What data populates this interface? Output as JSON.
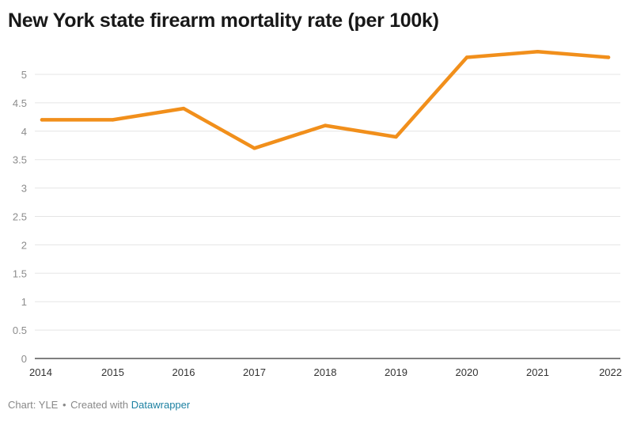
{
  "colors": {
    "line": "#f18f1b",
    "grid": "#e5e5e5",
    "axis": "#333333",
    "tick_label": "#8c8c8c",
    "x_tick_label": "#333333",
    "link": "#1d81a2"
  },
  "chart_data": {
    "type": "line",
    "title": "New York state firearm mortality rate (per 100k)",
    "xlabel": "",
    "ylabel": "",
    "categories": [
      "2014",
      "2015",
      "2016",
      "2017",
      "2018",
      "2019",
      "2020",
      "2021",
      "2022"
    ],
    "series": [
      {
        "name": "Firearm mortality rate",
        "values": [
          4.2,
          4.2,
          4.4,
          3.7,
          4.1,
          3.9,
          5.3,
          5.4,
          5.3
        ]
      }
    ],
    "ylim": [
      0,
      5.5
    ],
    "yticks": [
      0,
      0.5,
      1,
      1.5,
      2,
      2.5,
      3,
      3.5,
      4,
      4.5,
      5
    ],
    "ytick_labels": [
      "0",
      "0.5",
      "1",
      "1.5",
      "2",
      "2.5",
      "3",
      "3.5",
      "4",
      "4.5",
      "5"
    ],
    "grid": true,
    "legend": "none"
  },
  "footer": {
    "credit": "Chart: YLE",
    "separator": "•",
    "created_with": "Created with",
    "tool": "Datawrapper"
  }
}
